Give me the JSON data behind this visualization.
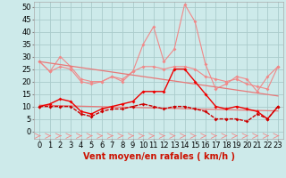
{
  "x": [
    0,
    1,
    2,
    3,
    4,
    5,
    6,
    7,
    8,
    9,
    10,
    11,
    12,
    13,
    14,
    15,
    16,
    17,
    18,
    19,
    20,
    21,
    22,
    23
  ],
  "line_light_pink_spiky": [
    28,
    24,
    30,
    26,
    21,
    20,
    20,
    22,
    20,
    24,
    35,
    42,
    28,
    33,
    51,
    44,
    27,
    17,
    19,
    22,
    21,
    16,
    22,
    26
  ],
  "line_light_pink_flat": [
    28,
    24,
    26,
    25,
    20,
    19,
    20,
    22,
    21,
    24,
    26,
    26,
    25,
    26,
    26,
    25,
    22,
    21,
    20,
    21,
    19,
    18,
    17,
    26
  ],
  "line_trend_upper": [
    28,
    27.4,
    26.8,
    26.2,
    25.6,
    25.0,
    24.4,
    23.8,
    23.2,
    22.6,
    22.0,
    21.4,
    20.8,
    20.2,
    19.6,
    19.0,
    18.4,
    17.8,
    17.2,
    16.6,
    16.0,
    15.4,
    14.8,
    14.2
  ],
  "line_trend_lower": [
    10.5,
    10.4,
    10.3,
    10.2,
    10.1,
    10.0,
    9.9,
    9.8,
    9.7,
    9.6,
    9.5,
    9.4,
    9.3,
    9.2,
    9.1,
    9.0,
    8.9,
    8.8,
    8.7,
    8.6,
    8.5,
    8.4,
    8.3,
    8.2
  ],
  "line_red_main": [
    10,
    11,
    13,
    12,
    8,
    7,
    9,
    10,
    11,
    12,
    16,
    16,
    16,
    25,
    25,
    20,
    15,
    10,
    9,
    10,
    9,
    8,
    5,
    10
  ],
  "line_red_lower": [
    10,
    10,
    10,
    10,
    7,
    6,
    8,
    9,
    9,
    10,
    11,
    10,
    9,
    10,
    10,
    9,
    8,
    5,
    5,
    5,
    4,
    7,
    5,
    10
  ],
  "background_color": "#cdeaea",
  "grid_color": "#aacccc",
  "color_light_pink": "#f08888",
  "color_pink": "#e87878",
  "color_red": "#ee0000",
  "color_dark_red": "#cc0000",
  "xlabel": "Vent moyen/en rafales ( km/h )",
  "ylabel_ticks": [
    0,
    5,
    10,
    15,
    20,
    25,
    30,
    35,
    40,
    45,
    50
  ],
  "ylim": [
    -3,
    52
  ],
  "xlim": [
    -0.5,
    23.5
  ],
  "xlabel_fontsize": 7,
  "tick_fontsize": 6
}
